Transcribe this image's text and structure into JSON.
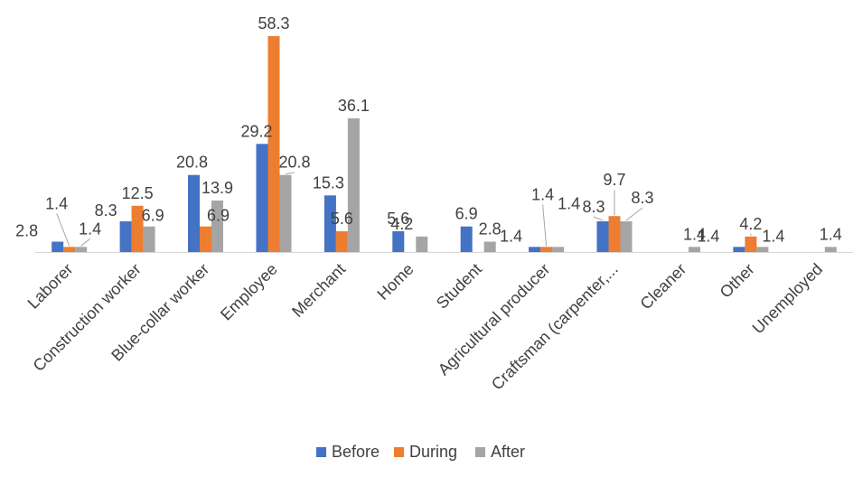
{
  "chart_data": {
    "type": "bar",
    "categories": [
      "Laborer",
      "Construction worker",
      "Blue-collar worker",
      "Employee",
      "Merchant",
      "Home",
      "Student",
      "Agricultural producer",
      "Craftsman (carpenter,...",
      "Cleaner",
      "Other",
      "Unemployed"
    ],
    "series": [
      {
        "name": "Before",
        "color": "#4472C4",
        "values": [
          2.8,
          8.3,
          20.8,
          29.2,
          15.3,
          5.6,
          6.9,
          1.4,
          8.3,
          null,
          1.4,
          null
        ]
      },
      {
        "name": "During",
        "color": "#ED7D31",
        "values": [
          1.4,
          12.5,
          6.9,
          58.3,
          5.6,
          null,
          null,
          1.4,
          9.7,
          null,
          4.2,
          null
        ]
      },
      {
        "name": "After",
        "color": "#A5A5A5",
        "values": [
          1.4,
          6.9,
          13.9,
          20.8,
          36.1,
          4.2,
          2.8,
          1.4,
          8.3,
          1.4,
          1.4,
          1.4
        ]
      }
    ],
    "title": "",
    "xlabel": "",
    "ylabel": "",
    "ylim": [
      0,
      60
    ],
    "grid": false,
    "legend": "bottom"
  }
}
